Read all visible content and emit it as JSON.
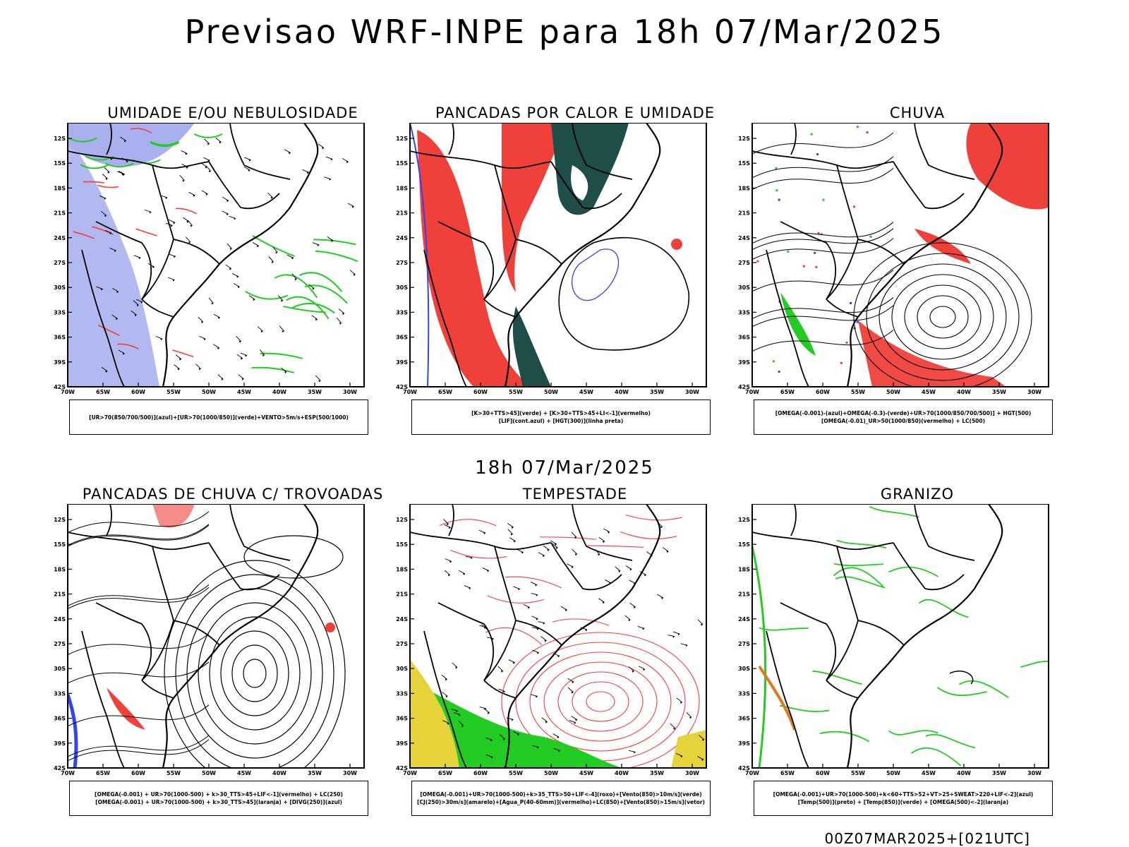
{
  "header": {
    "title": "Previsao WRF-INPE  para 18h 07/Mar/2025",
    "mid_time": "18h 07/Mar/2025",
    "footer": "00Z07MAR2025+[021UTC]"
  },
  "axes": {
    "lat_labels": [
      "12S",
      "15S",
      "18S",
      "21S",
      "24S",
      "27S",
      "30S",
      "33S",
      "36S",
      "39S",
      "42S"
    ],
    "lon_labels": [
      "70W",
      "65W",
      "60W",
      "55W",
      "50W",
      "45W",
      "40W",
      "35W",
      "30W"
    ]
  },
  "colors": {
    "red": "#f0403a",
    "green": "#22cc22",
    "blue": "#3344ee",
    "lavender": "#aab0ee",
    "darkteal": "#1f4d48",
    "yellow": "#e6d23a",
    "orange": "#e07a20"
  },
  "panels": [
    {
      "title": "UMIDADE E/OU NEBULOSIDADE",
      "legend": [
        "[UR>70(850/700/500)](azul)+[UR>70(1000/850)](verde)+VENTO>5m/s+ESP(500/1000)"
      ]
    },
    {
      "title": "PANCADAS POR CALOR E UMIDADE",
      "legend": [
        "[K>30+TTS>45](verde)  +  [K>30+TTS>45+LI<-1](vermelho)",
        "[LIF](cont.azul)  +  [HGT(300)](linha preta)"
      ]
    },
    {
      "title": "CHUVA",
      "legend": [
        "[OMEGA(-0.001)-(azul)+OMEGA(-0.3)-(verde)+UR>70(1000/850/700/500)]  +  HGT(500)",
        "[OMEGA(-0.01)_UR>50(1000/850)(vermelho)  +  LC(500)"
      ]
    },
    {
      "title": "PANCADAS DE CHUVA C/ TROVOADAS",
      "legend": [
        "[OMEGA(-0.001)  +  UR>70(1000-500)  +  k>30_TTS>45+LIF<-1](vermelho)  +  LC(250)",
        "[OMEGA(-0.001)  +  UR>70(1000-500)  +  k>30_TTS>45](laranja)  +  [DIVG(250)](azul)"
      ]
    },
    {
      "title": "TEMPESTADE",
      "legend": [
        "[OMEGA(-0.001)+UR>70(1000-500)+k>35_TTS>50+LIF<-4](roxo)+[Vento(850)>10m/s](verde)",
        "[CJ(250)>30m/s](amarelo)+[Agua_P(40-60mm)](vermelho)+LC(850)+[Vento(850)>15m/s](vetor)"
      ]
    },
    {
      "title": "GRANIZO",
      "legend": [
        "[OMEGA(-0.001)+UR>70(1000-500)+k<60+TTS>52+VT>25+SWEAT>220+LIF<-2](azul)",
        "[Temp(500)](preto)  +  [Temp(850)](verde)  +  [OMEGA(500)<-2](laranja)"
      ]
    }
  ]
}
